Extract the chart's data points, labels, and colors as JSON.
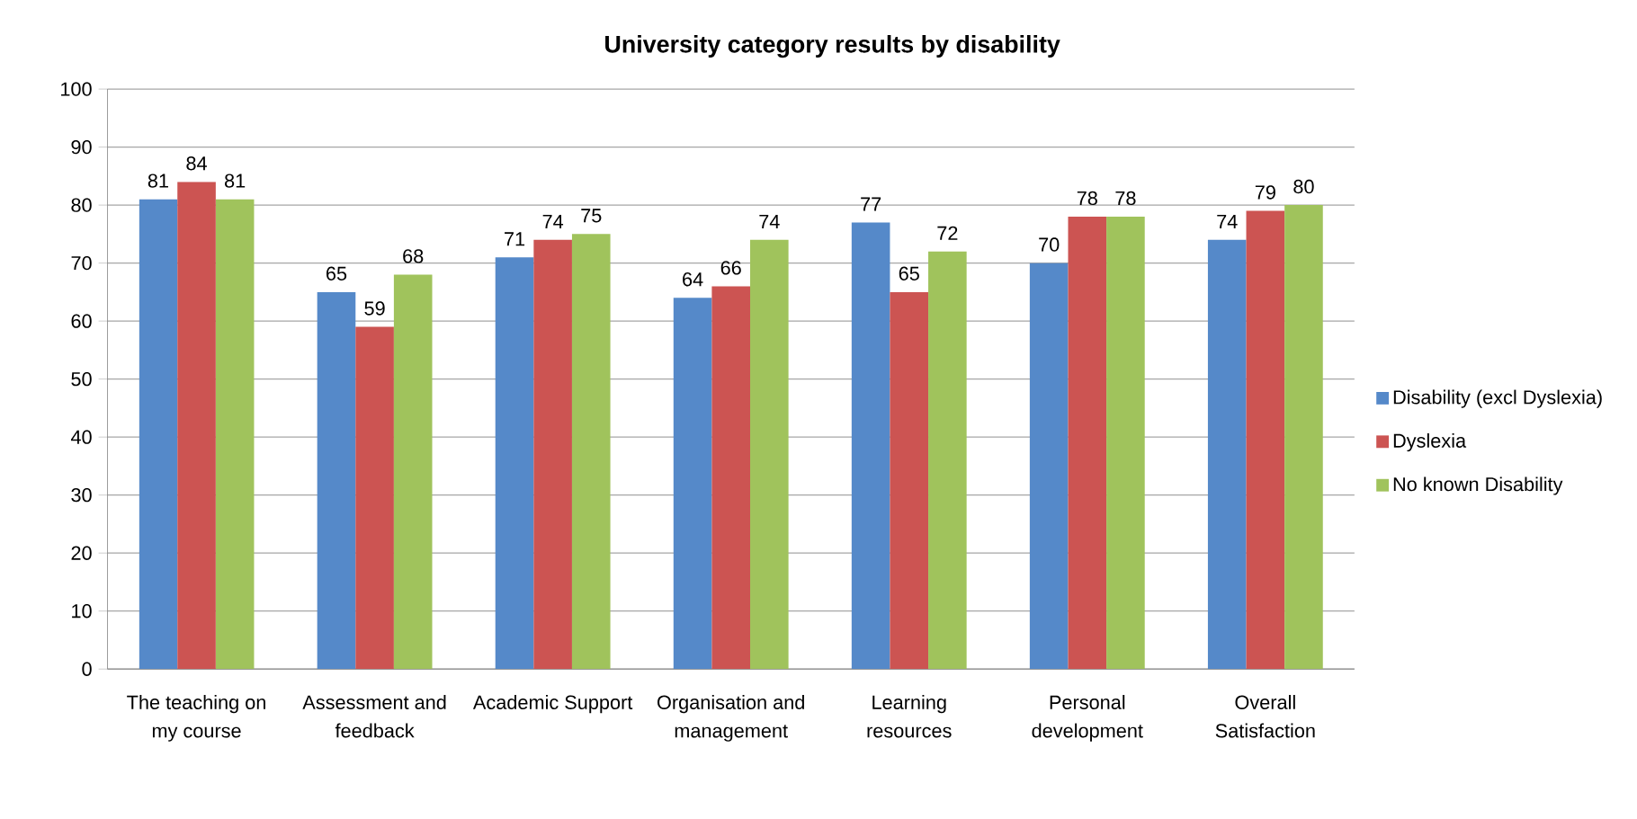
{
  "chart_data": {
    "type": "bar",
    "title": "University category results by disability",
    "categories": [
      "The teaching on my course",
      "Assessment and feedback",
      "Academic Support",
      "Organisation and management",
      "Learning resources",
      "Personal development",
      "Overall Satisfaction"
    ],
    "series": [
      {
        "name": "Disability (excl Dyslexia)",
        "color": "#5589c9",
        "values": [
          81,
          65,
          71,
          64,
          77,
          70,
          74
        ]
      },
      {
        "name": "Dyslexia",
        "color": "#cc5452",
        "values": [
          84,
          59,
          74,
          66,
          65,
          78,
          79
        ]
      },
      {
        "name": "No known Disability",
        "color": "#a0c35c",
        "values": [
          81,
          68,
          75,
          74,
          72,
          78,
          80
        ]
      }
    ],
    "ylim": [
      0,
      100
    ],
    "yticks": [
      0,
      10,
      20,
      30,
      40,
      50,
      60,
      70,
      80,
      90,
      100
    ],
    "grid": "y",
    "legend": "right",
    "data_labels": true
  }
}
